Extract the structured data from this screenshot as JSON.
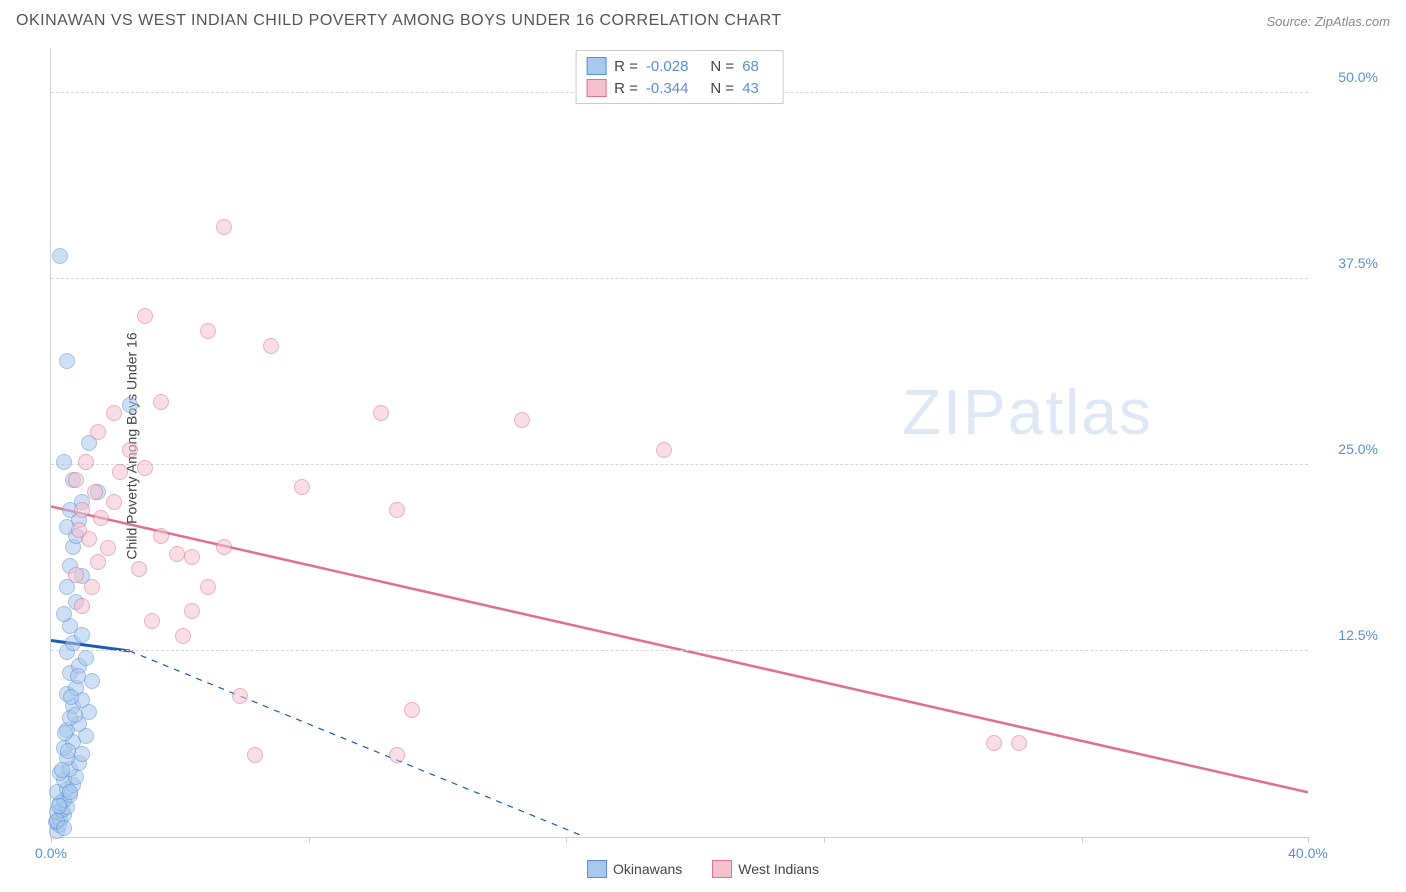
{
  "header": {
    "title": "OKINAWAN VS WEST INDIAN CHILD POVERTY AMONG BOYS UNDER 16 CORRELATION CHART",
    "source_prefix": "Source: ",
    "source_name": "ZipAtlas.com"
  },
  "watermark": {
    "part1": "ZIP",
    "part2": "atlas"
  },
  "chart": {
    "type": "scatter",
    "ylabel": "Child Poverty Among Boys Under 16",
    "xlim": [
      0,
      40
    ],
    "ylim": [
      0,
      53
    ],
    "xtick_left": "0.0%",
    "xtick_right": "40.0%",
    "xtick_positions_pct": [
      0,
      20.5,
      41,
      61.5,
      82,
      100
    ],
    "ytick_labels": [
      "12.5%",
      "25.0%",
      "37.5%",
      "50.0%"
    ],
    "ytick_values": [
      12.5,
      25.0,
      37.5,
      50.0
    ],
    "background_color": "#ffffff",
    "grid_color": "#d8d8d8",
    "axis_color": "#d0d0d0",
    "tick_label_color": "#5a8fd8",
    "marker_radius": 8,
    "marker_opacity": 0.55,
    "series": [
      {
        "name": "Okinawans",
        "fill_color": "#a8c8ec",
        "stroke_color": "#5a8fd8",
        "trend_color": "#1a5bb8",
        "trend_style": "solid-then-dashed",
        "trend_width": 2,
        "trend_start": [
          0,
          13.2
        ],
        "trend_solid_end": [
          2.5,
          12.5
        ],
        "trend_end": [
          17,
          0
        ],
        "R": "-0.028",
        "N": "68",
        "points": [
          [
            0.2,
            0.4
          ],
          [
            0.25,
            0.8
          ],
          [
            0.15,
            1.0
          ],
          [
            0.3,
            1.2
          ],
          [
            0.4,
            1.5
          ],
          [
            0.2,
            1.7
          ],
          [
            0.35,
            1.8
          ],
          [
            0.5,
            2.0
          ],
          [
            0.3,
            2.3
          ],
          [
            0.4,
            2.5
          ],
          [
            0.6,
            2.8
          ],
          [
            0.2,
            3.0
          ],
          [
            0.5,
            3.2
          ],
          [
            0.7,
            3.5
          ],
          [
            0.4,
            3.8
          ],
          [
            0.8,
            4.0
          ],
          [
            0.3,
            4.3
          ],
          [
            0.6,
            4.6
          ],
          [
            0.9,
            5.0
          ],
          [
            0.5,
            5.3
          ],
          [
            1.0,
            5.6
          ],
          [
            0.4,
            6.0
          ],
          [
            0.7,
            6.4
          ],
          [
            1.1,
            6.8
          ],
          [
            0.5,
            7.2
          ],
          [
            0.9,
            7.6
          ],
          [
            0.6,
            8.0
          ],
          [
            1.2,
            8.4
          ],
          [
            0.7,
            8.8
          ],
          [
            1.0,
            9.2
          ],
          [
            0.5,
            9.6
          ],
          [
            0.8,
            10.0
          ],
          [
            1.3,
            10.5
          ],
          [
            0.6,
            11.0
          ],
          [
            0.9,
            11.5
          ],
          [
            1.1,
            12.0
          ],
          [
            0.5,
            12.4
          ],
          [
            0.7,
            13.0
          ],
          [
            1.0,
            13.6
          ],
          [
            0.6,
            14.2
          ],
          [
            0.4,
            15.0
          ],
          [
            0.8,
            15.8
          ],
          [
            0.5,
            16.8
          ],
          [
            1.0,
            17.5
          ],
          [
            0.6,
            18.2
          ],
          [
            0.7,
            19.5
          ],
          [
            0.8,
            20.2
          ],
          [
            0.5,
            20.8
          ],
          [
            0.9,
            21.3
          ],
          [
            0.6,
            22.0
          ],
          [
            1.0,
            22.5
          ],
          [
            1.5,
            23.2
          ],
          [
            0.7,
            24.0
          ],
          [
            0.4,
            25.2
          ],
          [
            1.2,
            26.5
          ],
          [
            2.5,
            29.0
          ],
          [
            0.5,
            32.0
          ],
          [
            0.3,
            39.0
          ],
          [
            0.2,
            1.1
          ],
          [
            0.4,
            0.6
          ],
          [
            0.25,
            2.1
          ],
          [
            0.6,
            3.0
          ],
          [
            0.35,
            4.5
          ],
          [
            0.55,
            5.8
          ],
          [
            0.45,
            7.0
          ],
          [
            0.75,
            8.2
          ],
          [
            0.65,
            9.4
          ],
          [
            0.85,
            10.8
          ]
        ]
      },
      {
        "name": "West Indians",
        "fill_color": "#f4c2cf",
        "stroke_color": "#e0708f",
        "trend_color": "#e0708f",
        "trend_style": "solid",
        "trend_width": 2.5,
        "trend_start": [
          0,
          22.2
        ],
        "trend_end": [
          40,
          3.0
        ],
        "R": "-0.344",
        "N": "43",
        "points": [
          [
            1.0,
            15.5
          ],
          [
            1.3,
            16.8
          ],
          [
            0.8,
            17.6
          ],
          [
            1.5,
            18.5
          ],
          [
            1.8,
            19.4
          ],
          [
            1.2,
            20.0
          ],
          [
            0.9,
            20.6
          ],
          [
            1.6,
            21.4
          ],
          [
            1.0,
            22.0
          ],
          [
            2.0,
            22.5
          ],
          [
            1.4,
            23.2
          ],
          [
            0.8,
            24.0
          ],
          [
            2.2,
            24.5
          ],
          [
            1.1,
            25.2
          ],
          [
            2.5,
            26.0
          ],
          [
            1.5,
            27.2
          ],
          [
            3.0,
            24.8
          ],
          [
            4.0,
            19.0
          ],
          [
            3.5,
            20.2
          ],
          [
            4.5,
            15.2
          ],
          [
            5.0,
            16.8
          ],
          [
            5.5,
            19.5
          ],
          [
            4.2,
            13.5
          ],
          [
            6.0,
            9.5
          ],
          [
            6.5,
            5.5
          ],
          [
            3.0,
            35.0
          ],
          [
            5.0,
            34.0
          ],
          [
            5.5,
            41.0
          ],
          [
            7.0,
            33.0
          ],
          [
            8.0,
            23.5
          ],
          [
            11.0,
            22.0
          ],
          [
            11.5,
            8.5
          ],
          [
            11.0,
            5.5
          ],
          [
            10.5,
            28.5
          ],
          [
            15.0,
            28.0
          ],
          [
            19.5,
            26.0
          ],
          [
            30.0,
            6.3
          ],
          [
            30.8,
            6.3
          ],
          [
            2.0,
            28.5
          ],
          [
            3.5,
            29.2
          ],
          [
            2.8,
            18.0
          ],
          [
            4.5,
            18.8
          ],
          [
            3.2,
            14.5
          ]
        ]
      }
    ],
    "legend_top": {
      "R_label": "R =",
      "N_label": "N ="
    },
    "legend_bottom_labels": [
      "Okinawans",
      "West Indians"
    ]
  }
}
